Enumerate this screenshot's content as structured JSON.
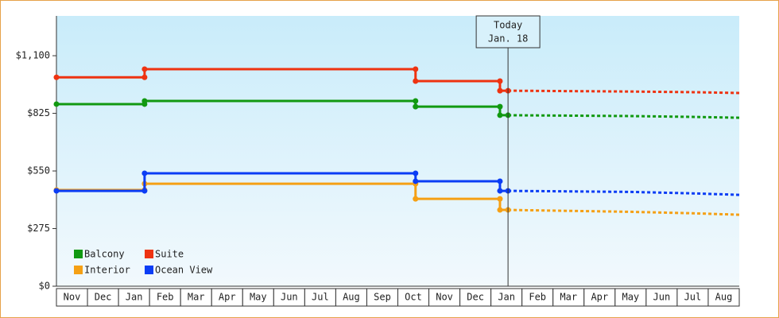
{
  "chart_data": {
    "type": "step-line",
    "xlim": [
      0,
      22
    ],
    "ylim": [
      0,
      1290
    ],
    "yticks": [
      {
        "value": 0,
        "label": "$0"
      },
      {
        "value": 275,
        "label": "$275"
      },
      {
        "value": 550,
        "label": "$550"
      },
      {
        "value": 825,
        "label": "$825"
      },
      {
        "value": 1100,
        "label": "$1,100"
      }
    ],
    "categories": [
      "Nov",
      "Dec",
      "Jan",
      "Feb",
      "Mar",
      "Apr",
      "May",
      "Jun",
      "Jul",
      "Aug",
      "Sep",
      "Oct",
      "Nov",
      "Dec",
      "Jan",
      "Feb",
      "Mar",
      "Apr",
      "May",
      "Jun",
      "Jul",
      "Aug"
    ],
    "legend": "bottom-left",
    "annotation": {
      "x": 14.55,
      "lines": [
        "Today",
        "Jan. 18"
      ]
    },
    "series": [
      {
        "name": "Balcony",
        "color": "#119911",
        "x": [
          0,
          2.84,
          11.57,
          14.29,
          14.55
        ],
        "values": [
          869,
          884,
          857,
          816,
          816
        ],
        "forecast_x": [
          14.55,
          18.5,
          20.5,
          22
        ],
        "forecast_values": [
          816,
          812,
          808,
          804
        ]
      },
      {
        "name": "Suite",
        "color": "#ee3311",
        "x": [
          0,
          2.84,
          11.57,
          14.29,
          14.55
        ],
        "values": [
          997,
          1036,
          979,
          933,
          933
        ],
        "forecast_x": [
          14.55,
          18.5,
          20.5,
          22
        ],
        "forecast_values": [
          933,
          929,
          926,
          922
        ]
      },
      {
        "name": "Interior",
        "color": "#f5a015",
        "x": [
          0,
          2.84,
          11.57,
          14.29,
          14.55
        ],
        "values": [
          459,
          489,
          417,
          364,
          364
        ],
        "forecast_x": [
          14.55,
          18.5,
          20.5,
          22
        ],
        "forecast_values": [
          364,
          355,
          348,
          341
        ]
      },
      {
        "name": "Ocean View",
        "color": "#0b3df5",
        "x": [
          0,
          2.84,
          11.57,
          14.29,
          14.55
        ],
        "values": [
          455,
          539,
          501,
          455,
          455
        ],
        "forecast_x": [
          14.55,
          18.5,
          20.5,
          22
        ],
        "forecast_values": [
          455,
          450,
          443,
          436
        ]
      }
    ]
  }
}
